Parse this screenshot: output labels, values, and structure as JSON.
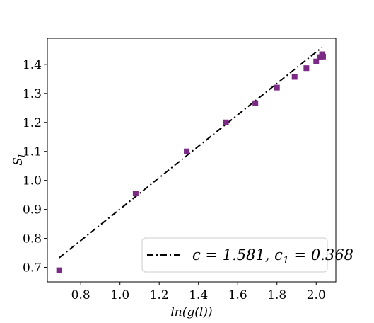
{
  "chart_data": {
    "type": "scatter",
    "xlabel": "ln(g(l))",
    "ylabel": "S",
    "ylabel_sub": "l",
    "xlim": [
      0.63,
      2.1
    ],
    "ylim": [
      0.65,
      1.49
    ],
    "xticks": [
      0.8,
      1.0,
      1.2,
      1.4,
      1.6,
      1.8,
      2.0
    ],
    "xtick_labels": [
      "0.8",
      "1.0",
      "1.2",
      "1.4",
      "1.6",
      "1.8",
      "2.0"
    ],
    "yticks": [
      0.7,
      0.8,
      0.9,
      1.0,
      1.1,
      1.2,
      1.3,
      1.4
    ],
    "ytick_labels": [
      "0.7",
      "0.8",
      "0.9",
      "1.0",
      "1.1",
      "1.2",
      "1.3",
      "1.4"
    ],
    "grid": false,
    "legend_position": "lower-right",
    "series": [
      {
        "kind": "points",
        "marker": "square",
        "color": "#7b2a86",
        "points": [
          {
            "x": 0.69,
            "y": 0.69
          },
          {
            "x": 1.08,
            "y": 0.955
          },
          {
            "x": 1.34,
            "y": 1.1
          },
          {
            "x": 1.54,
            "y": 1.2
          },
          {
            "x": 1.69,
            "y": 1.266
          },
          {
            "x": 1.8,
            "y": 1.32
          },
          {
            "x": 1.89,
            "y": 1.357
          },
          {
            "x": 1.95,
            "y": 1.387
          },
          {
            "x": 2.0,
            "y": 1.41
          },
          {
            "x": 2.02,
            "y": 1.425
          },
          {
            "x": 2.03,
            "y": 1.435
          },
          {
            "x": 2.035,
            "y": 1.427
          }
        ]
      },
      {
        "kind": "fit-line",
        "name": "c = 1.581, c1 = 0.368",
        "name_parts": [
          "c = 1.581, c",
          "1",
          " = 0.368"
        ],
        "style": "dashdot",
        "color": "#000000",
        "x": [
          0.69,
          2.03
        ],
        "y": [
          0.733,
          1.459
        ]
      }
    ]
  }
}
